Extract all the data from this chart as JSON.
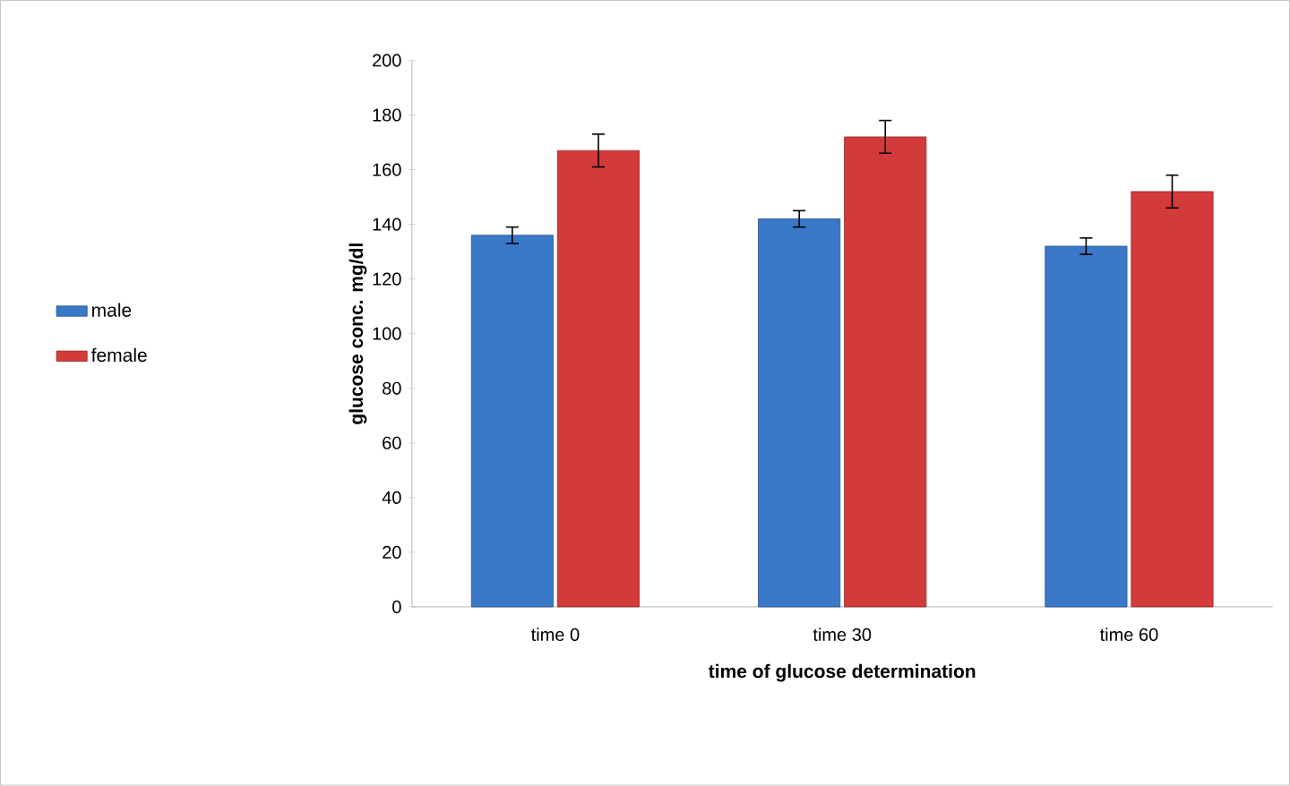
{
  "chart_data": {
    "type": "bar",
    "xlabel": "time of glucose determination",
    "ylabel": "glucose conc. mg/dl",
    "categories": [
      "time 0",
      "time 30",
      "time 60"
    ],
    "series": [
      {
        "name": "male",
        "color": "#3a78c8",
        "values": [
          136,
          142,
          132
        ],
        "errors": [
          3,
          3,
          3
        ]
      },
      {
        "name": "female",
        "color": "#d33b3b",
        "values": [
          167,
          172,
          152
        ],
        "errors": [
          6,
          6,
          6
        ]
      }
    ],
    "ylim": [
      0,
      200
    ],
    "yticks": [
      0,
      20,
      40,
      60,
      80,
      100,
      120,
      140,
      160,
      180,
      200
    ],
    "legend": "left"
  }
}
